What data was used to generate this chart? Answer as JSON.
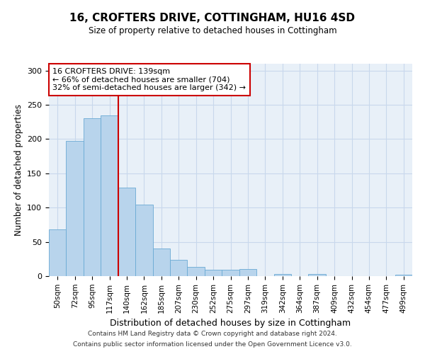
{
  "title": "16, CROFTERS DRIVE, COTTINGHAM, HU16 4SD",
  "subtitle": "Size of property relative to detached houses in Cottingham",
  "xlabel": "Distribution of detached houses by size in Cottingham",
  "ylabel": "Number of detached properties",
  "bar_labels": [
    "50sqm",
    "72sqm",
    "95sqm",
    "117sqm",
    "140sqm",
    "162sqm",
    "185sqm",
    "207sqm",
    "230sqm",
    "252sqm",
    "275sqm",
    "297sqm",
    "319sqm",
    "342sqm",
    "364sqm",
    "387sqm",
    "409sqm",
    "432sqm",
    "454sqm",
    "477sqm",
    "499sqm"
  ],
  "bar_heights": [
    68,
    197,
    230,
    235,
    129,
    104,
    40,
    24,
    13,
    9,
    9,
    10,
    0,
    3,
    0,
    3,
    0,
    0,
    0,
    0,
    2
  ],
  "bar_color": "#b8d4ec",
  "bar_edgecolor": "#6aaad4",
  "vline_color": "#cc0000",
  "vline_x_index": 4,
  "annotation_text": "16 CROFTERS DRIVE: 139sqm\n← 66% of detached houses are smaller (704)\n32% of semi-detached houses are larger (342) →",
  "annotation_box_edgecolor": "#cc0000",
  "annotation_box_facecolor": "#ffffff",
  "grid_color": "#c8d8ec",
  "background_color": "#ffffff",
  "plot_bg_color": "#e8f0f8",
  "ylim": [
    0,
    310
  ],
  "yticks": [
    0,
    50,
    100,
    150,
    200,
    250,
    300
  ],
  "footer1": "Contains HM Land Registry data © Crown copyright and database right 2024.",
  "footer2": "Contains public sector information licensed under the Open Government Licence v3.0."
}
